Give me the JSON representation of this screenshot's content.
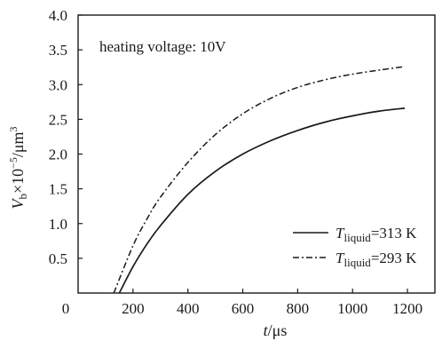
{
  "chart_data": {
    "type": "line",
    "title": "",
    "annotation": "heating voltage: 10V",
    "xlabel": {
      "var": "t",
      "unit": "/μs"
    },
    "ylabel": {
      "var": "V",
      "sub": "b",
      "mid": "×10",
      "sup": "−5",
      "unit": "/μm",
      "unit_sup": "3"
    },
    "xlim": [
      0,
      1300
    ],
    "ylim": [
      0,
      4.0
    ],
    "x_ticks": [
      0,
      200,
      400,
      600,
      800,
      1000,
      1200
    ],
    "x_tick_labels": [
      "0",
      "200",
      "400",
      "600",
      "800",
      "1000",
      "1200"
    ],
    "y_ticks": [
      0.5,
      1.0,
      1.5,
      2.0,
      2.5,
      3.0,
      3.5,
      4.0
    ],
    "y_tick_labels": [
      "0.5",
      "1.0",
      "1.5",
      "2.0",
      "2.5",
      "3.0",
      "3.5",
      "4.0"
    ],
    "grid": false,
    "legend_position": "bottom-right",
    "series": [
      {
        "name": "T_liquid=313 K",
        "legend": {
          "var": "T",
          "sub": "liquid",
          "rest": "=313 K"
        },
        "style": "solid",
        "color": "#1a1a1a",
        "x": [
          150,
          200,
          250,
          300,
          400,
          500,
          600,
          700,
          800,
          900,
          1000,
          1100,
          1190
        ],
        "y": [
          0.0,
          0.38,
          0.7,
          0.97,
          1.42,
          1.75,
          2.0,
          2.19,
          2.34,
          2.46,
          2.55,
          2.62,
          2.66
        ]
      },
      {
        "name": "T_liquid=293 K",
        "legend": {
          "var": "T",
          "sub": "liquid",
          "rest": "=293 K"
        },
        "style": "dashdot",
        "color": "#1a1a1a",
        "x": [
          130,
          200,
          250,
          300,
          400,
          500,
          600,
          700,
          800,
          900,
          1000,
          1100,
          1190
        ],
        "y": [
          0.0,
          0.68,
          1.06,
          1.38,
          1.88,
          2.28,
          2.58,
          2.8,
          2.96,
          3.07,
          3.15,
          3.21,
          3.26
        ]
      }
    ]
  }
}
